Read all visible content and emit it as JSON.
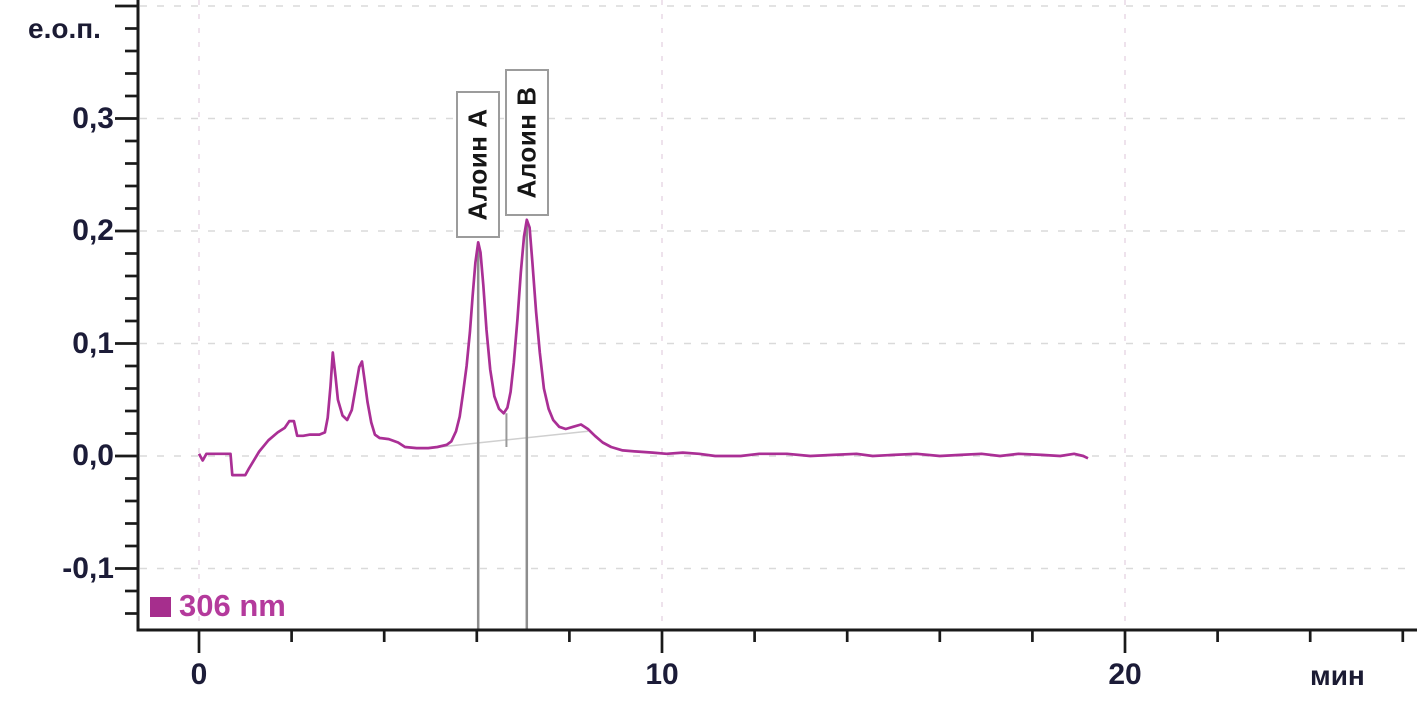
{
  "figure": {
    "y_axis_title": "е.о.п.",
    "x_axis_title": "мин",
    "legend": {
      "label": "306 nm",
      "text_color": "#b43a9c",
      "swatch_color": "#a62e8d"
    },
    "peaks": [
      {
        "label": "Алоин А",
        "t": 6.03,
        "value": 0.19
      },
      {
        "label": "Алоин В",
        "t": 7.08,
        "value": 0.21
      }
    ]
  },
  "chart_data": {
    "type": "line",
    "title": "",
    "xlabel": "мин",
    "ylabel": "е.о.п.",
    "xlim": [
      -1.3,
      26.3
    ],
    "ylim": [
      -0.155,
      0.405
    ],
    "x_major_ticks": [
      0,
      10,
      20
    ],
    "x_tick_labels": [
      "0",
      "10",
      "20"
    ],
    "x_minor_tick_step": 2,
    "y_major_ticks": [
      0.4,
      0.3,
      0.2,
      0.1,
      0.0,
      -0.1
    ],
    "y_tick_labels": [
      "",
      "0,3",
      "0,2",
      "0,1",
      "0,0",
      "-0,1"
    ],
    "y_minor_tick_step": 0.02,
    "grid": "dashed gridlines at major ticks",
    "legend_position": "bottom-left inside plot",
    "decimal_separator": ",",
    "series": [
      {
        "name": "306 nm",
        "color": "#aa2f95",
        "points": [
          [
            0.0,
            0.002
          ],
          [
            0.08,
            -0.004
          ],
          [
            0.16,
            0.002
          ],
          [
            0.68,
            0.002
          ],
          [
            0.72,
            -0.017
          ],
          [
            1.0,
            -0.017
          ],
          [
            1.08,
            -0.011
          ],
          [
            1.3,
            0.004
          ],
          [
            1.5,
            0.014
          ],
          [
            1.7,
            0.021
          ],
          [
            1.85,
            0.025
          ],
          [
            1.95,
            0.031
          ],
          [
            2.05,
            0.031
          ],
          [
            2.12,
            0.018
          ],
          [
            2.25,
            0.018
          ],
          [
            2.4,
            0.019
          ],
          [
            2.6,
            0.019
          ],
          [
            2.72,
            0.021
          ],
          [
            2.78,
            0.034
          ],
          [
            2.84,
            0.062
          ],
          [
            2.89,
            0.092
          ],
          [
            2.95,
            0.07
          ],
          [
            3.0,
            0.05
          ],
          [
            3.1,
            0.036
          ],
          [
            3.2,
            0.032
          ],
          [
            3.3,
            0.041
          ],
          [
            3.38,
            0.06
          ],
          [
            3.46,
            0.079
          ],
          [
            3.52,
            0.084
          ],
          [
            3.58,
            0.066
          ],
          [
            3.64,
            0.048
          ],
          [
            3.72,
            0.03
          ],
          [
            3.8,
            0.019
          ],
          [
            3.9,
            0.016
          ],
          [
            4.1,
            0.015
          ],
          [
            4.3,
            0.012
          ],
          [
            4.45,
            0.008
          ],
          [
            4.7,
            0.007
          ],
          [
            4.95,
            0.007
          ],
          [
            5.15,
            0.008
          ],
          [
            5.35,
            0.01
          ],
          [
            5.45,
            0.013
          ],
          [
            5.55,
            0.022
          ],
          [
            5.63,
            0.035
          ],
          [
            5.7,
            0.055
          ],
          [
            5.78,
            0.08
          ],
          [
            5.85,
            0.11
          ],
          [
            5.91,
            0.142
          ],
          [
            5.97,
            0.172
          ],
          [
            6.03,
            0.19
          ],
          [
            6.08,
            0.181
          ],
          [
            6.14,
            0.152
          ],
          [
            6.21,
            0.112
          ],
          [
            6.29,
            0.077
          ],
          [
            6.38,
            0.053
          ],
          [
            6.48,
            0.042
          ],
          [
            6.58,
            0.038
          ],
          [
            6.66,
            0.043
          ],
          [
            6.73,
            0.057
          ],
          [
            6.8,
            0.083
          ],
          [
            6.88,
            0.122
          ],
          [
            6.95,
            0.163
          ],
          [
            7.02,
            0.195
          ],
          [
            7.08,
            0.21
          ],
          [
            7.14,
            0.203
          ],
          [
            7.2,
            0.172
          ],
          [
            7.28,
            0.128
          ],
          [
            7.36,
            0.092
          ],
          [
            7.45,
            0.06
          ],
          [
            7.55,
            0.042
          ],
          [
            7.65,
            0.032
          ],
          [
            7.78,
            0.026
          ],
          [
            7.92,
            0.024
          ],
          [
            8.08,
            0.026
          ],
          [
            8.25,
            0.028
          ],
          [
            8.4,
            0.024
          ],
          [
            8.55,
            0.018
          ],
          [
            8.72,
            0.012
          ],
          [
            8.9,
            0.008
          ],
          [
            9.15,
            0.005
          ],
          [
            9.45,
            0.004
          ],
          [
            9.8,
            0.003
          ],
          [
            10.1,
            0.002
          ],
          [
            10.45,
            0.003
          ],
          [
            10.8,
            0.002
          ],
          [
            11.15,
            0.0
          ],
          [
            11.7,
            0.0
          ],
          [
            12.1,
            0.002
          ],
          [
            12.7,
            0.002
          ],
          [
            13.2,
            0.0
          ],
          [
            13.7,
            0.001
          ],
          [
            14.2,
            0.002
          ],
          [
            14.55,
            0.0
          ],
          [
            15.0,
            0.001
          ],
          [
            15.5,
            0.002
          ],
          [
            16.0,
            0.0
          ],
          [
            16.45,
            0.001
          ],
          [
            16.9,
            0.002
          ],
          [
            17.3,
            0.0
          ],
          [
            17.7,
            0.002
          ],
          [
            18.2,
            0.001
          ],
          [
            18.6,
            0.0
          ],
          [
            18.9,
            0.002
          ],
          [
            19.1,
            0.0
          ],
          [
            19.2,
            -0.002
          ]
        ]
      }
    ],
    "annotations": {
      "valley_marker": {
        "t": 6.64,
        "y_top": 0.038,
        "y_bottom": 0.008
      },
      "integration_baseline": {
        "t_start": 5.2,
        "y_start": 0.008,
        "t_end": 8.4,
        "y_end": 0.022
      }
    },
    "colors": {
      "axis": "#1a1a1a",
      "tick_label": "#1c1c38",
      "h_grid": "#dadada",
      "v_grid": "#e9dbe7",
      "drop_line": "#8d8d8d",
      "peak_box_border": "#9c9c9c"
    }
  }
}
